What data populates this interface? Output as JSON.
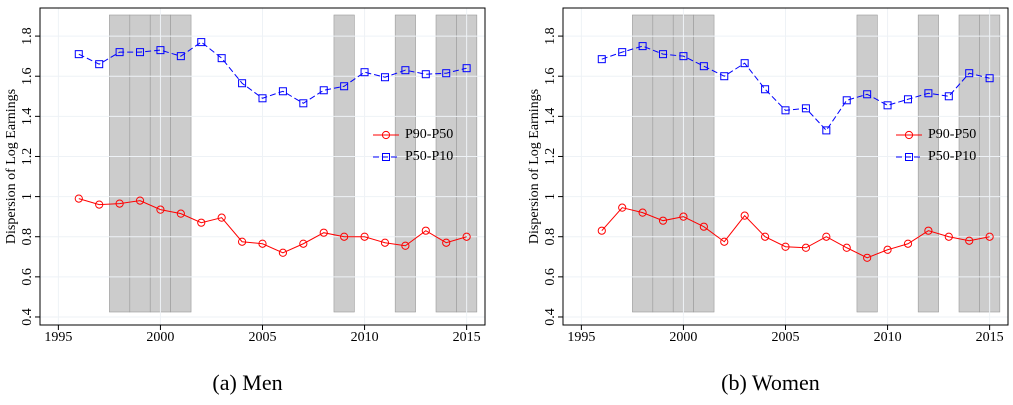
{
  "chart_data": [
    {
      "type": "line",
      "caption": "(a) Men",
      "ylabel": "Dispersion of Log Earnings",
      "x": [
        1996,
        1997,
        1998,
        1999,
        2000,
        2001,
        2002,
        2003,
        2004,
        2005,
        2006,
        2007,
        2008,
        2009,
        2010,
        2011,
        2012,
        2013,
        2014,
        2015
      ],
      "series": [
        {
          "name": "P90-P50",
          "color": "#ff0000",
          "marker": "circle",
          "dashed": false,
          "values": [
            0.99,
            0.96,
            0.965,
            0.98,
            0.935,
            0.915,
            0.87,
            0.895,
            0.775,
            0.765,
            0.72,
            0.765,
            0.82,
            0.8,
            0.8,
            0.77,
            0.755,
            0.83,
            0.77,
            0.8
          ]
        },
        {
          "name": "P50-P10",
          "color": "#0000ff",
          "marker": "square",
          "dashed": true,
          "values": [
            1.71,
            1.66,
            1.72,
            1.72,
            1.73,
            1.7,
            1.77,
            1.69,
            1.565,
            1.49,
            1.525,
            1.465,
            1.53,
            1.55,
            1.62,
            1.595,
            1.63,
            1.61,
            1.615,
            1.64
          ]
        }
      ],
      "shaded_years": [
        1998,
        1999,
        2000,
        2001,
        2009,
        2012,
        2014,
        2015
      ],
      "xlim": [
        1994.1,
        2015.9
      ],
      "xticks": [
        1995,
        2000,
        2005,
        2010,
        2015
      ],
      "ylim": [
        0.36,
        1.94
      ],
      "yticks": [
        0.4,
        0.6,
        0.8,
        1,
        1.2,
        1.4,
        1.6,
        1.8
      ],
      "grid": true,
      "legend": "right"
    },
    {
      "type": "line",
      "caption": "(b) Women",
      "ylabel": "Dispersion of Log Earnings",
      "x": [
        1996,
        1997,
        1998,
        1999,
        2000,
        2001,
        2002,
        2003,
        2004,
        2005,
        2006,
        2007,
        2008,
        2009,
        2010,
        2011,
        2012,
        2013,
        2014,
        2015
      ],
      "series": [
        {
          "name": "P90-P50",
          "color": "#ff0000",
          "marker": "circle",
          "dashed": false,
          "values": [
            0.83,
            0.945,
            0.92,
            0.88,
            0.9,
            0.85,
            0.775,
            0.905,
            0.8,
            0.75,
            0.745,
            0.8,
            0.745,
            0.695,
            0.735,
            0.765,
            0.83,
            0.8,
            0.78,
            0.8
          ]
        },
        {
          "name": "P50-P10",
          "color": "#0000ff",
          "marker": "square",
          "dashed": true,
          "values": [
            1.685,
            1.72,
            1.75,
            1.71,
            1.7,
            1.65,
            1.6,
            1.665,
            1.535,
            1.43,
            1.44,
            1.33,
            1.48,
            1.51,
            1.455,
            1.485,
            1.515,
            1.5,
            1.615,
            1.59
          ]
        }
      ],
      "shaded_years": [
        1998,
        1999,
        2000,
        2001,
        2009,
        2012,
        2014,
        2015
      ],
      "xlim": [
        1994.1,
        2015.9
      ],
      "xticks": [
        1995,
        2000,
        2005,
        2010,
        2015
      ],
      "ylim": [
        0.36,
        1.94
      ],
      "yticks": [
        0.4,
        0.6,
        0.8,
        1,
        1.2,
        1.4,
        1.6,
        1.8
      ],
      "grid": true,
      "legend": "right"
    }
  ]
}
